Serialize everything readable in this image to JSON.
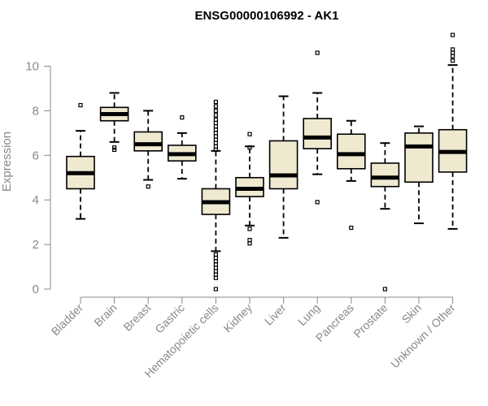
{
  "chart_data": {
    "type": "boxplot",
    "title": "ENSG00000106992 - AK1",
    "ylabel": "Expression",
    "ylim": [
      0,
      11.5
    ],
    "yticks": [
      0,
      2,
      4,
      6,
      8,
      10
    ],
    "box_fill": "#efe9d0",
    "categories": [
      "Bladder",
      "Brain",
      "Breast",
      "Gastric",
      "Hematopoietic cells",
      "Kidney",
      "Liver",
      "Lung",
      "Pancreas",
      "Prostate",
      "Skin",
      "Unknown / Other"
    ],
    "boxes": [
      {
        "name": "Bladder",
        "whisker_low": 3.15,
        "q1": 4.5,
        "median": 5.2,
        "q3": 5.95,
        "whisker_high": 7.1,
        "outliers": [
          8.25
        ]
      },
      {
        "name": "Brain",
        "whisker_low": 6.6,
        "q1": 7.55,
        "median": 7.85,
        "q3": 8.15,
        "whisker_high": 8.8,
        "outliers": [
          6.35,
          6.25
        ]
      },
      {
        "name": "Breast",
        "whisker_low": 4.9,
        "q1": 6.2,
        "median": 6.5,
        "q3": 7.05,
        "whisker_high": 8.0,
        "outliers": [
          4.6
        ]
      },
      {
        "name": "Gastric",
        "whisker_low": 4.95,
        "q1": 5.75,
        "median": 6.05,
        "q3": 6.45,
        "whisker_high": 7.0,
        "outliers": [
          7.7
        ]
      },
      {
        "name": "Hematopoietic cells",
        "whisker_low": 1.7,
        "q1": 3.35,
        "median": 3.9,
        "q3": 4.5,
        "whisker_high": 6.2,
        "outliers": [
          8.4,
          8.2,
          8.0,
          7.8,
          7.6,
          7.45,
          7.3,
          7.15,
          7.0,
          6.85,
          6.7,
          6.55,
          6.4,
          6.25,
          1.55,
          1.4,
          1.25,
          1.1,
          0.95,
          0.8,
          0.65,
          0.5,
          0.0
        ]
      },
      {
        "name": "Kidney",
        "whisker_low": 2.85,
        "q1": 4.15,
        "median": 4.5,
        "q3": 5.0,
        "whisker_high": 6.4,
        "outliers": [
          6.95,
          6.35,
          2.7,
          2.2,
          2.05
        ]
      },
      {
        "name": "Liver",
        "whisker_low": 2.3,
        "q1": 4.5,
        "median": 5.1,
        "q3": 6.65,
        "whisker_high": 8.65,
        "outliers": []
      },
      {
        "name": "Lung",
        "whisker_low": 5.15,
        "q1": 6.3,
        "median": 6.8,
        "q3": 7.65,
        "whisker_high": 8.8,
        "outliers": [
          10.6,
          3.9
        ]
      },
      {
        "name": "Pancreas",
        "whisker_low": 4.85,
        "q1": 5.4,
        "median": 6.05,
        "q3": 6.95,
        "whisker_high": 7.55,
        "outliers": [
          2.75
        ]
      },
      {
        "name": "Prostate",
        "whisker_low": 3.6,
        "q1": 4.6,
        "median": 5.0,
        "q3": 5.65,
        "whisker_high": 6.55,
        "outliers": [
          0.0
        ]
      },
      {
        "name": "Skin",
        "whisker_low": 2.95,
        "q1": 4.8,
        "median": 6.4,
        "q3": 7.0,
        "whisker_high": 7.3,
        "outliers": []
      },
      {
        "name": "Unknown / Other",
        "whisker_low": 2.7,
        "q1": 5.25,
        "median": 6.15,
        "q3": 7.15,
        "whisker_high": 10.05,
        "outliers": [
          11.4,
          10.75,
          10.6,
          10.45,
          10.25
        ]
      }
    ]
  }
}
